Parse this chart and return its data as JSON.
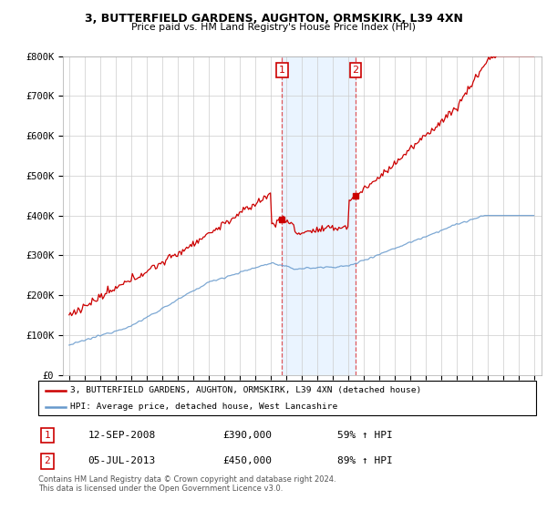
{
  "title1": "3, BUTTERFIELD GARDENS, AUGHTON, ORMSKIRK, L39 4XN",
  "title2": "Price paid vs. HM Land Registry's House Price Index (HPI)",
  "ylim": [
    0,
    800000
  ],
  "yticks": [
    0,
    100000,
    200000,
    300000,
    400000,
    500000,
    600000,
    700000,
    800000
  ],
  "ytick_labels": [
    "£0",
    "£100K",
    "£200K",
    "£300K",
    "£400K",
    "£500K",
    "£600K",
    "£700K",
    "£800K"
  ],
  "legend_line1": "3, BUTTERFIELD GARDENS, AUGHTON, ORMSKIRK, L39 4XN (detached house)",
  "legend_line2": "HPI: Average price, detached house, West Lancashire",
  "transaction1_date": "12-SEP-2008",
  "transaction1_price": "£390,000",
  "transaction1_hpi": "59% ↑ HPI",
  "transaction2_date": "05-JUL-2013",
  "transaction2_price": "£450,000",
  "transaction2_hpi": "89% ↑ HPI",
  "footer": "Contains HM Land Registry data © Crown copyright and database right 2024.\nThis data is licensed under the Open Government Licence v3.0.",
  "red_color": "#cc0000",
  "blue_color": "#6699cc",
  "shade_color": "#ddeeff",
  "transaction1_year": 2008.75,
  "transaction2_year": 2013.5
}
